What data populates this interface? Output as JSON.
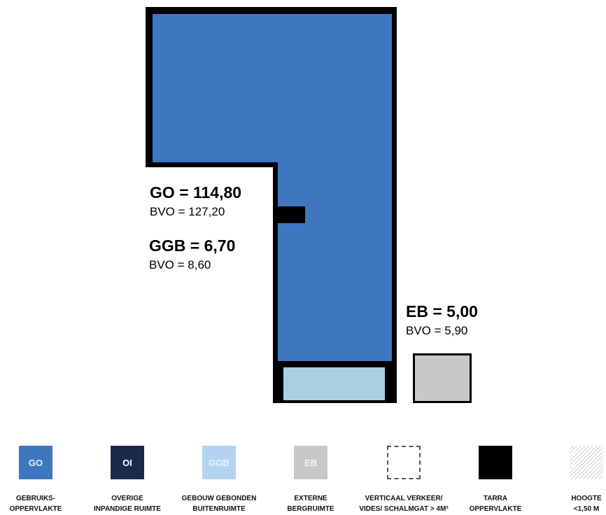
{
  "areas": {
    "go": {
      "main": "GO = 114,80",
      "sub": "BVO = 127,20"
    },
    "ggb": {
      "main": "GGB = 6,70",
      "sub": "BVO = 8,60"
    },
    "eb": {
      "main": "EB = 5,00",
      "sub": "BVO = 5,90"
    }
  },
  "colors": {
    "go": "#3f76c0",
    "oi": "#1c2a49",
    "ggb_plan": "#a8d0e0",
    "ggb_legend": "#b4d3f0",
    "eb": "#c8c8c8",
    "tarra": "#000000"
  },
  "legend": [
    {
      "code": "GO",
      "line1": "GEBRUIKS-",
      "line2": "OPPERVLAKTE"
    },
    {
      "code": "OI",
      "line1": "OVERIGE",
      "line2": "INPANDIGE RUIMTE"
    },
    {
      "code": "GGB",
      "line1": "GEBOUW GEBONDEN",
      "line2": "BUITENRUIMTE"
    },
    {
      "code": "EB",
      "line1": "EXTERNE",
      "line2": "BERGRUIMTE"
    },
    {
      "code": "",
      "line1": "VERTICAAL VERKEER/",
      "line2": "VIDES/ SCHALMGAT > 4M²"
    },
    {
      "code": "",
      "line1": "TARRA",
      "line2": "OPPERVLAKTE"
    },
    {
      "code": "",
      "line1": "HOOGTE",
      "line2": "<1,50 M"
    }
  ]
}
